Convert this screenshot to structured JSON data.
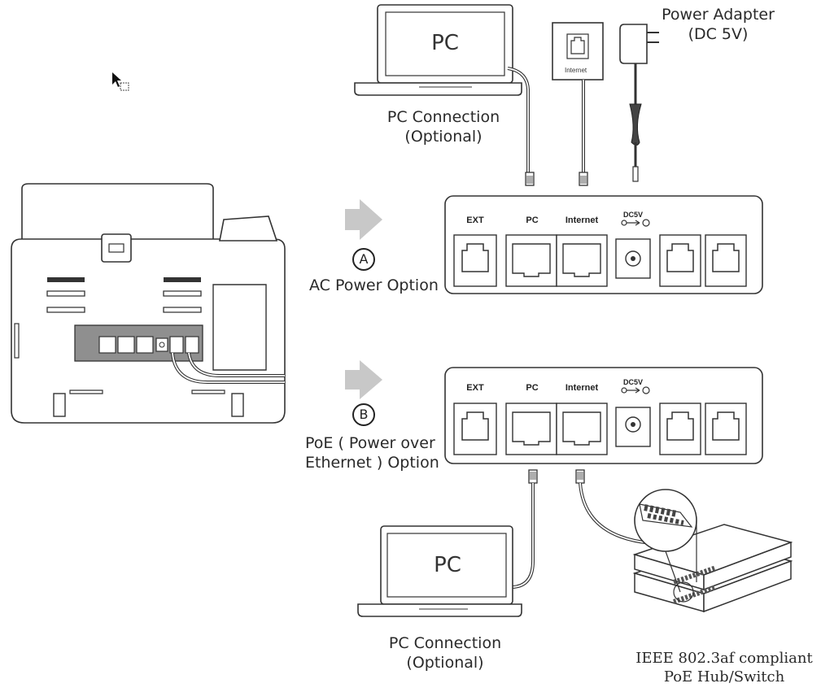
{
  "top": {
    "pc_screen_text": "PC",
    "pc_label_line1": "PC Connection",
    "pc_label_line2": "(Optional)",
    "wall_jack_text": "Internet",
    "adapter_line1": "Power Adapter",
    "adapter_line2": "(DC 5V)"
  },
  "option_a": {
    "letter": "A",
    "label": "AC Power Option"
  },
  "option_b": {
    "letter": "B",
    "label_line1": "PoE ( Power over",
    "label_line2": "Ethernet ) Option"
  },
  "ports": {
    "ext": "EXT",
    "pc": "PC",
    "internet": "Internet",
    "dc": "DC5V"
  },
  "bottom": {
    "pc_screen_text": "PC",
    "pc_label_line1": "PC Connection",
    "pc_label_line2": "(Optional)",
    "switch_line1": "IEEE 802.3af compliant",
    "switch_line2": "PoE Hub/Switch"
  },
  "colors": {
    "line": "#333333",
    "arrow": "#c8c8c8",
    "panel_inset": "#8f8f8f"
  }
}
